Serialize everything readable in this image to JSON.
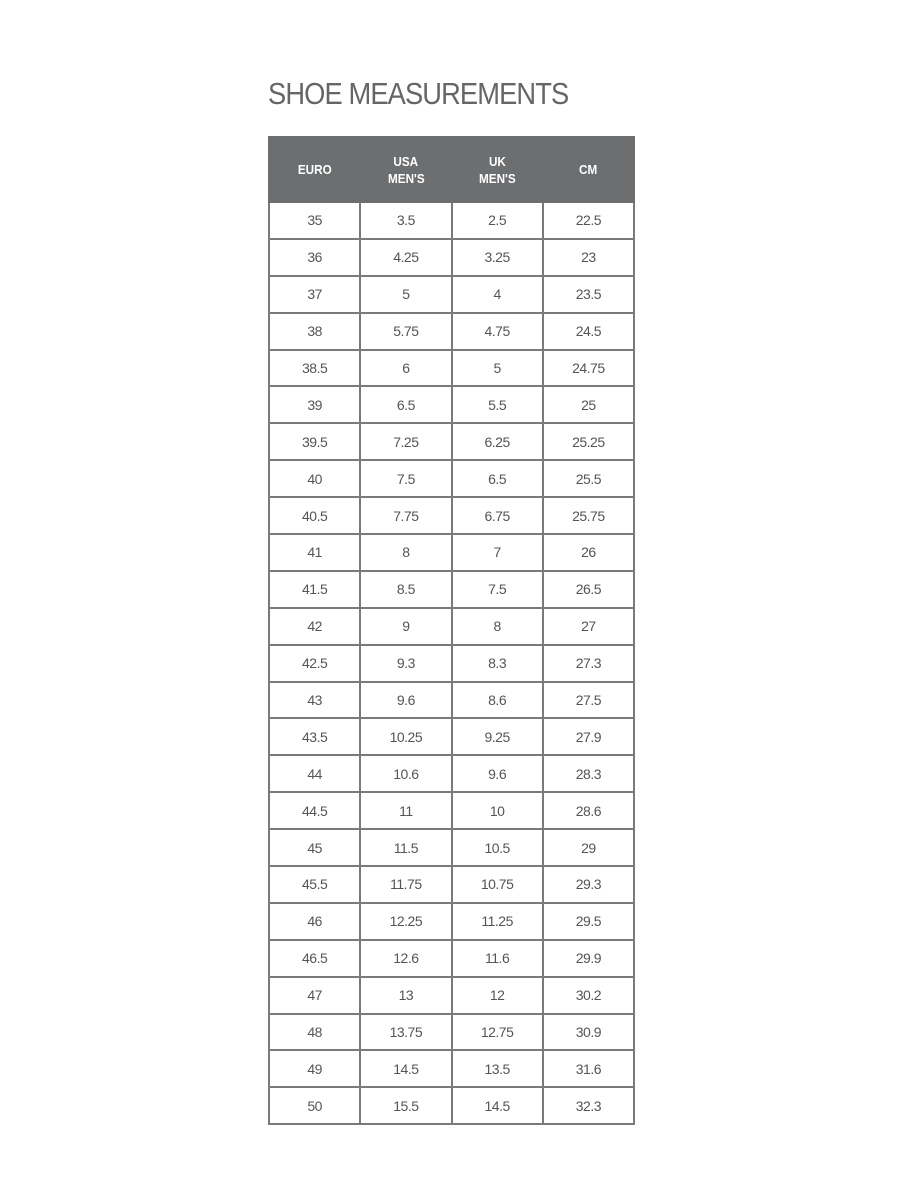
{
  "title": "SHOE MEASUREMENTS",
  "headers": [
    [
      "EURO"
    ],
    [
      "USA",
      "MEN'S"
    ],
    [
      "UK",
      "MEN'S"
    ],
    [
      "CM"
    ]
  ],
  "colors": {
    "header_bg": "#6d6e70",
    "border": "#7a7a7a",
    "text": "#555555"
  },
  "rows": [
    [
      "35",
      "3.5",
      "2.5",
      "22.5"
    ],
    [
      "36",
      "4.25",
      "3.25",
      "23"
    ],
    [
      "37",
      "5",
      "4",
      "23.5"
    ],
    [
      "38",
      "5.75",
      "4.75",
      "24.5"
    ],
    [
      "38.5",
      "6",
      "5",
      "24.75"
    ],
    [
      "39",
      "6.5",
      "5.5",
      "25"
    ],
    [
      "39.5",
      "7.25",
      "6.25",
      "25.25"
    ],
    [
      "40",
      "7.5",
      "6.5",
      "25.5"
    ],
    [
      "40.5",
      "7.75",
      "6.75",
      "25.75"
    ],
    [
      "41",
      "8",
      "7",
      "26"
    ],
    [
      "41.5",
      "8.5",
      "7.5",
      "26.5"
    ],
    [
      "42",
      "9",
      "8",
      "27"
    ],
    [
      "42.5",
      "9.3",
      "8.3",
      "27.3"
    ],
    [
      "43",
      "9.6",
      "8.6",
      "27.5"
    ],
    [
      "43.5",
      "10.25",
      "9.25",
      "27.9"
    ],
    [
      "44",
      "10.6",
      "9.6",
      "28.3"
    ],
    [
      "44.5",
      "11",
      "10",
      "28.6"
    ],
    [
      "45",
      "11.5",
      "10.5",
      "29"
    ],
    [
      "45.5",
      "11.75",
      "10.75",
      "29.3"
    ],
    [
      "46",
      "12.25",
      "11.25",
      "29.5"
    ],
    [
      "46.5",
      "12.6",
      "11.6",
      "29.9"
    ],
    [
      "47",
      "13",
      "12",
      "30.2"
    ],
    [
      "48",
      "13.75",
      "12.75",
      "30.9"
    ],
    [
      "49",
      "14.5",
      "13.5",
      "31.6"
    ],
    [
      "50",
      "15.5",
      "14.5",
      "32.3"
    ]
  ]
}
